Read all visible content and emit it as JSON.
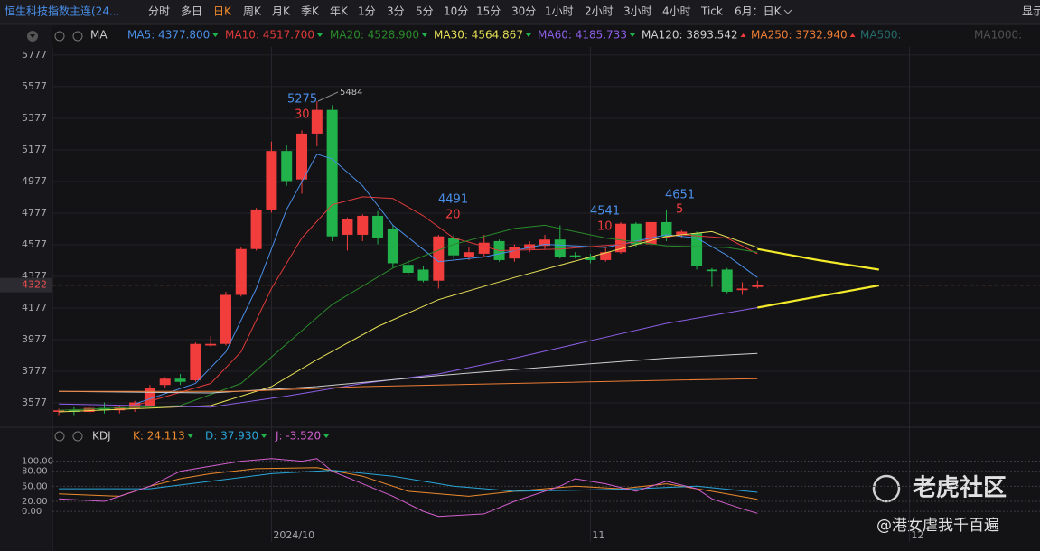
{
  "toolbar": {
    "symbol": "恒生科技指数主连(24...",
    "periods": [
      "分时",
      "多日",
      "日K",
      "周K",
      "月K",
      "季K",
      "年K",
      "1分",
      "3分",
      "5分",
      "10分",
      "15分",
      "30分",
      "1小时",
      "2小时",
      "3小时",
      "4小时",
      "Tick"
    ],
    "active": 2,
    "range": "6月：日K",
    "right": "显示"
  },
  "chart_data": [
    {
      "type": "candlestick",
      "legend_title": "MA",
      "candles": {
        "open": [
          3520,
          3530,
          3520,
          3545,
          3530,
          3540,
          3560,
          3690,
          3730,
          3720,
          3940,
          3950,
          4260,
          4550,
          4800,
          5170,
          4990,
          5280,
          5430,
          4640,
          4640,
          4760,
          4680,
          4450,
          4420,
          4350,
          4620,
          4500,
          4520,
          4600,
          4490,
          4550,
          4570,
          4610,
          4510,
          4500,
          4480,
          4530,
          4710,
          4580,
          4720,
          4640,
          4650,
          4420,
          4420,
          4290,
          4310
        ],
        "high": [
          3540,
          3550,
          3560,
          3580,
          3560,
          3590,
          3690,
          3740,
          3760,
          3960,
          4000,
          4280,
          4560,
          4810,
          5230,
          5210,
          5300,
          5484,
          5460,
          4750,
          4770,
          4790,
          4700,
          4480,
          4440,
          4640,
          4640,
          4560,
          4640,
          4610,
          4580,
          4600,
          4640,
          4700,
          4530,
          4520,
          4560,
          4720,
          4720,
          4720,
          4800,
          4670,
          4660,
          4430,
          4430,
          4340,
          4350
        ],
        "low": [
          3500,
          3500,
          3510,
          3510,
          3510,
          3520,
          3550,
          3670,
          3690,
          3710,
          3930,
          3940,
          4250,
          4540,
          4780,
          4950,
          4900,
          5200,
          4600,
          4540,
          4600,
          4580,
          4430,
          4380,
          4340,
          4300,
          4490,
          4480,
          4500,
          4470,
          4470,
          4530,
          4550,
          4490,
          4490,
          4460,
          4470,
          4520,
          4560,
          4560,
          4600,
          4620,
          4420,
          4310,
          4270,
          4260,
          4300
        ],
        "close": [
          3530,
          3520,
          3545,
          3530,
          3550,
          3580,
          3670,
          3730,
          3710,
          3950,
          3950,
          4260,
          4550,
          4800,
          5170,
          4980,
          5280,
          5430,
          4630,
          4740,
          4760,
          4620,
          4460,
          4400,
          4350,
          4630,
          4510,
          4530,
          4590,
          4480,
          4560,
          4580,
          4610,
          4500,
          4500,
          4480,
          4530,
          4710,
          4580,
          4720,
          4630,
          4660,
          4440,
          4410,
          4280,
          4300,
          4322
        ]
      },
      "series": [
        {
          "name": "MA5",
          "legend": "MA5: 4377.800",
          "trend": "down",
          "color": "#4a8fe8",
          "x": [
            5,
            9,
            11,
            13,
            15,
            17,
            18,
            20,
            22,
            25,
            28,
            32,
            36,
            40,
            42,
            44,
            46
          ],
          "values": [
            3570,
            3700,
            3900,
            4300,
            4800,
            5150,
            5120,
            4950,
            4700,
            4470,
            4500,
            4580,
            4560,
            4640,
            4620,
            4510,
            4370
          ]
        },
        {
          "name": "MA10",
          "legend": "MA10: 4517.700",
          "trend": "down",
          "color": "#e03a3a",
          "x": [
            5,
            10,
            12,
            14,
            16,
            18,
            20,
            22,
            24,
            26,
            29,
            33,
            37,
            41,
            44,
            46
          ],
          "values": [
            3560,
            3700,
            3900,
            4300,
            4620,
            4830,
            4880,
            4870,
            4760,
            4620,
            4540,
            4550,
            4580,
            4640,
            4620,
            4520
          ]
        },
        {
          "name": "MA20",
          "legend": "MA20: 4528.900",
          "trend": "down",
          "color": "#2a8a2a",
          "x": [
            0,
            8,
            12,
            15,
            18,
            22,
            26,
            30,
            32,
            36,
            40,
            44,
            46
          ],
          "values": [
            3530,
            3560,
            3700,
            3950,
            4200,
            4430,
            4580,
            4680,
            4700,
            4620,
            4570,
            4560,
            4530
          ]
        },
        {
          "name": "MA30",
          "legend": "MA30: 4564.867",
          "trend": "down",
          "color": "#e6df55",
          "x": [
            0,
            10,
            14,
            17,
            21,
            25,
            30,
            35,
            40,
            43,
            46
          ],
          "values": [
            3520,
            3560,
            3680,
            3850,
            4060,
            4230,
            4370,
            4500,
            4630,
            4660,
            4560
          ]
        },
        {
          "name": "MA60",
          "legend": "MA60: 4185.733",
          "trend": "down",
          "color": "#8d5ee6",
          "x": [
            0,
            10,
            15,
            20,
            25,
            30,
            35,
            40,
            46
          ],
          "values": [
            3570,
            3550,
            3620,
            3700,
            3760,
            3860,
            3970,
            4080,
            4180
          ]
        },
        {
          "name": "MA120",
          "legend": "MA120: 3893.542",
          "trend": "up",
          "color": "#cfcfcf",
          "x": [
            0,
            10,
            17,
            25,
            33,
            40,
            46
          ],
          "values": [
            3650,
            3640,
            3680,
            3750,
            3810,
            3860,
            3890
          ]
        },
        {
          "name": "MA250",
          "legend": "MA250: 3732.940",
          "trend": "up",
          "color": "#ec7c34",
          "x": [
            0,
            12,
            20,
            30,
            40,
            46
          ],
          "values": [
            3650,
            3650,
            3680,
            3700,
            3720,
            3730
          ]
        },
        {
          "name": "MA500",
          "legend": "MA500:",
          "color": "#2f8f8f"
        },
        {
          "name": "MA1000",
          "legend": "MA1000:",
          "color": "#6a6a6a"
        },
        {
          "color": "#f2ea2a",
          "x": [
            46,
            50,
            54
          ],
          "values": [
            4550,
            4480,
            4420
          ]
        },
        {
          "color": "#f2ea2a",
          "x": [
            46,
            50,
            54
          ],
          "values": [
            4180,
            4250,
            4320
          ]
        }
      ],
      "annotations": [
        "5484",
        "5275",
        "30",
        "4491",
        "20",
        "4541",
        "10",
        "4651",
        "5"
      ],
      "last_price": 4322,
      "ylim": [
        3440,
        5828
      ],
      "yticks": [
        5777,
        5577,
        5377,
        5177,
        4977,
        4777,
        4577,
        4377,
        4177,
        3977,
        3777,
        3577
      ],
      "xlim": [
        -0.42,
        64.6
      ],
      "xticks": [
        {
          "value": 14,
          "label": "2024/10"
        },
        {
          "value": 35,
          "label": "11"
        },
        {
          "value": 56,
          "label": "12"
        }
      ],
      "up_color": "#f23d3d",
      "down_color": "#22b24c",
      "grid": true
    },
    {
      "type": "line",
      "legend_title": "KDJ",
      "series": [
        {
          "name": "K",
          "legend": "K: 24.113",
          "trend": "down",
          "color": "#ec8a2c",
          "x": [
            0,
            4,
            6,
            8,
            10,
            13,
            17,
            20,
            23,
            27,
            30,
            34,
            37,
            40,
            43,
            46
          ],
          "values": [
            35,
            30,
            50,
            65,
            75,
            85,
            87,
            70,
            40,
            30,
            40,
            50,
            45,
            55,
            40,
            24
          ]
        },
        {
          "name": "D",
          "legend": "D: 37.930",
          "trend": "down",
          "color": "#2aa6d8",
          "x": [
            0,
            6,
            10,
            14,
            18,
            22,
            26,
            30,
            34,
            38,
            42,
            46
          ],
          "values": [
            45,
            45,
            60,
            75,
            82,
            70,
            50,
            40,
            42,
            45,
            50,
            38
          ]
        },
        {
          "name": "J",
          "legend": "J: -3.520",
          "trend": "down",
          "color": "#d45fd0",
          "x": [
            0,
            3,
            6,
            8,
            10,
            12,
            14,
            16,
            17,
            18,
            20,
            22,
            24,
            25,
            28,
            30,
            33,
            34,
            36,
            38,
            40,
            42,
            43,
            45,
            46
          ],
          "values": [
            25,
            20,
            50,
            80,
            90,
            100,
            105,
            100,
            105,
            80,
            55,
            30,
            0,
            -10,
            -5,
            20,
            50,
            65,
            55,
            40,
            60,
            45,
            25,
            5,
            -4
          ]
        }
      ],
      "ylim": [
        -25,
        137
      ],
      "yticks": [
        {
          "value": 100,
          "label": "100.00"
        },
        {
          "value": 80,
          "label": "80.00"
        },
        {
          "value": 50,
          "label": "50.00"
        },
        {
          "value": 20,
          "label": "20.00"
        },
        {
          "value": 0,
          "label": "0.00"
        }
      ],
      "xlim": [
        -0.42,
        64.6
      ]
    }
  ],
  "watermark": {
    "brand": "老虎社区",
    "user": "@港女虐我千百遍"
  }
}
